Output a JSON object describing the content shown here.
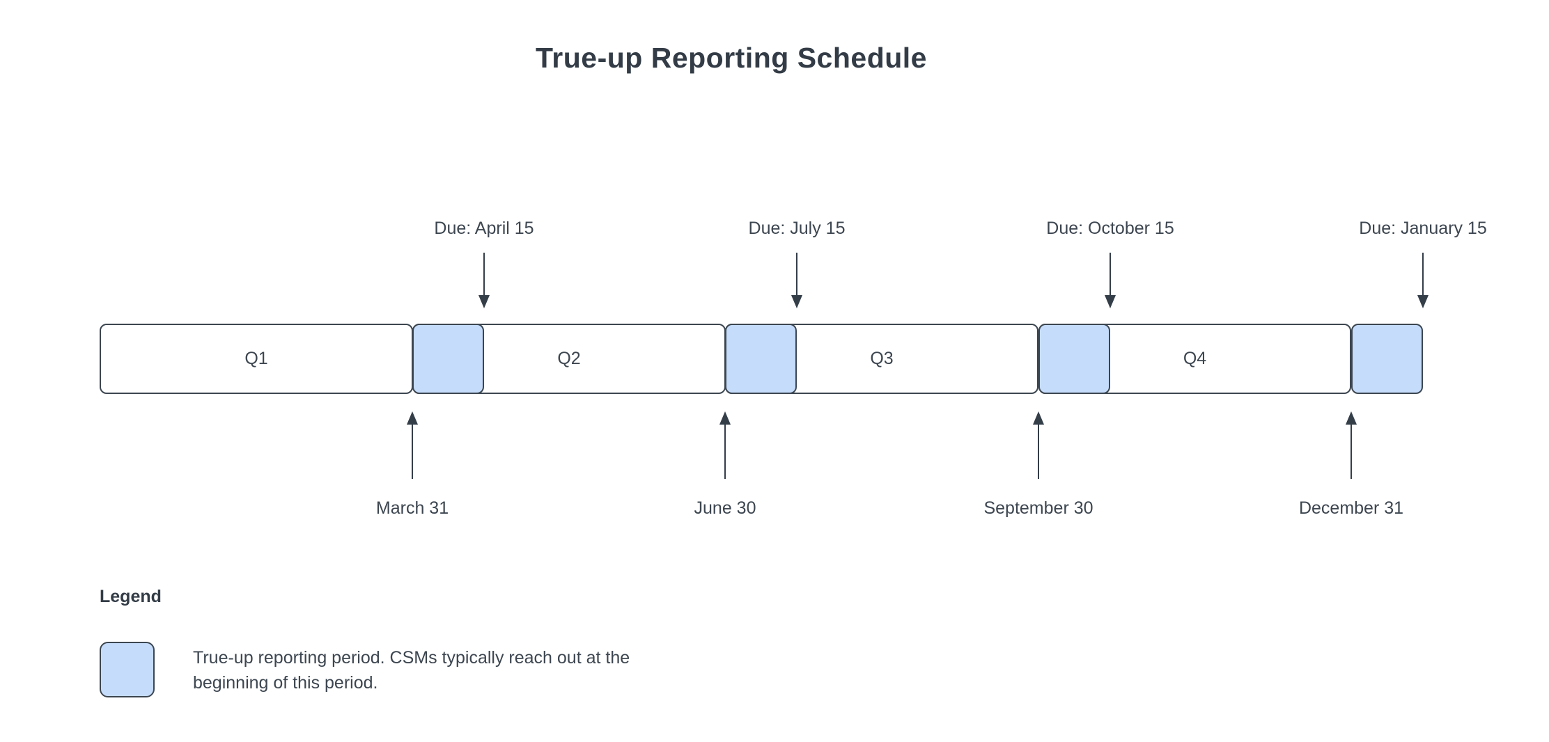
{
  "title": "True-up Reporting Schedule",
  "colors": {
    "background": "#ffffff",
    "highlight_fill": "#c5dcfb",
    "shape_border": "#3c4650",
    "text": "#3d4650",
    "heading_text": "#333c46"
  },
  "timeline": {
    "quarters": [
      {
        "label": "Q1"
      },
      {
        "label": "Q2"
      },
      {
        "label": "Q3"
      },
      {
        "label": "Q4"
      }
    ],
    "due_markers": [
      {
        "label": "Due: April 15"
      },
      {
        "label": "Due: July 15"
      },
      {
        "label": "Due: October 15"
      },
      {
        "label": "Due: January 15"
      }
    ],
    "quarter_end_markers": [
      {
        "label": "March 31"
      },
      {
        "label": "June 30"
      },
      {
        "label": "September 30"
      },
      {
        "label": "December 31"
      }
    ]
  },
  "legend": {
    "heading": "Legend",
    "items": [
      {
        "swatch": "highlight_fill",
        "text": "True-up reporting period. CSMs typically reach out at the beginning of this period."
      }
    ]
  }
}
